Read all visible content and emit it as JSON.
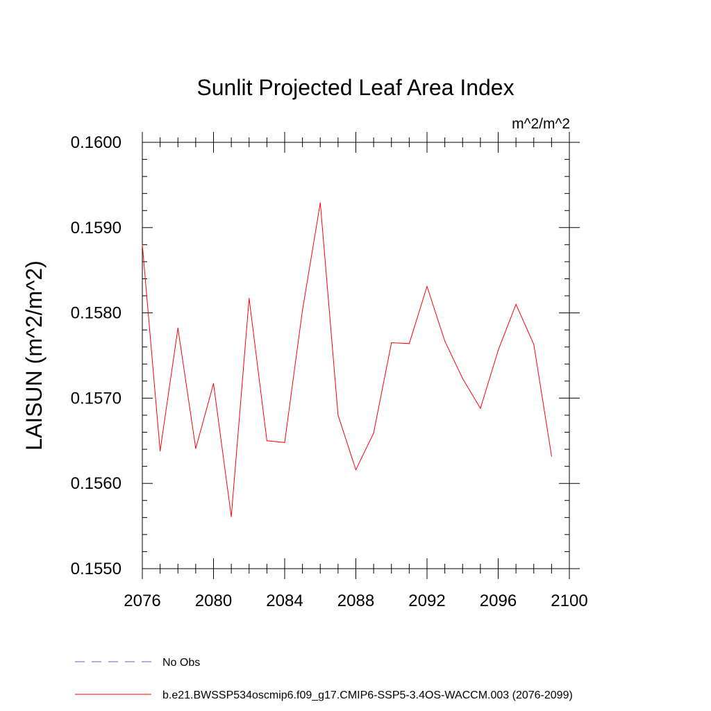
{
  "chart_data": {
    "type": "line",
    "title": "Sunlit Projected Leaf Area Index",
    "units_label": "m^2/m^2",
    "ylabel": "LAISUN  (m^2/m^2)",
    "xlabel": "",
    "xlim": [
      2076,
      2100
    ],
    "ylim": [
      0.155,
      0.16
    ],
    "x_ticks": [
      2076,
      2080,
      2084,
      2088,
      2092,
      2096,
      2100
    ],
    "x_tick_labels": [
      "2076",
      "2080",
      "2084",
      "2088",
      "2092",
      "2096",
      "2100"
    ],
    "y_ticks": [
      0.155,
      0.156,
      0.157,
      0.158,
      0.159,
      0.16
    ],
    "y_tick_labels": [
      "0.1550",
      "0.1560",
      "0.1570",
      "0.1580",
      "0.1590",
      "0.1600"
    ],
    "grid": false,
    "legend_position": "bottom-left",
    "series": [
      {
        "name": "b.e21.BWSSP534oscmip6.f09_g17.CMIP6-SSP5-3.4OS-WACCM.003 (2076-2099)",
        "color": "#ff0000",
        "dash": "solid",
        "x": [
          2076,
          2077,
          2078,
          2079,
          2080,
          2081,
          2082,
          2083,
          2084,
          2085,
          2086,
          2087,
          2088,
          2089,
          2090,
          2091,
          2092,
          2093,
          2094,
          2095,
          2096,
          2097,
          2098,
          2099
        ],
        "y": [
          0.1588,
          0.15638,
          0.15782,
          0.15641,
          0.15717,
          0.15561,
          0.15817,
          0.1565,
          0.15648,
          0.15803,
          0.15929,
          0.1568,
          0.15616,
          0.15659,
          0.15765,
          0.15764,
          0.15831,
          0.15767,
          0.15723,
          0.15688,
          0.15756,
          0.1581,
          0.15763,
          0.15632
        ]
      }
    ],
    "legend": [
      {
        "label": "No Obs",
        "color": "#6a5acd",
        "dash": "dashed"
      },
      {
        "label": "b.e21.BWSSP534oscmip6.f09_g17.CMIP6-SSP5-3.4OS-WACCM.003 (2076-2099)",
        "color": "#ff0000",
        "dash": "solid"
      }
    ]
  }
}
